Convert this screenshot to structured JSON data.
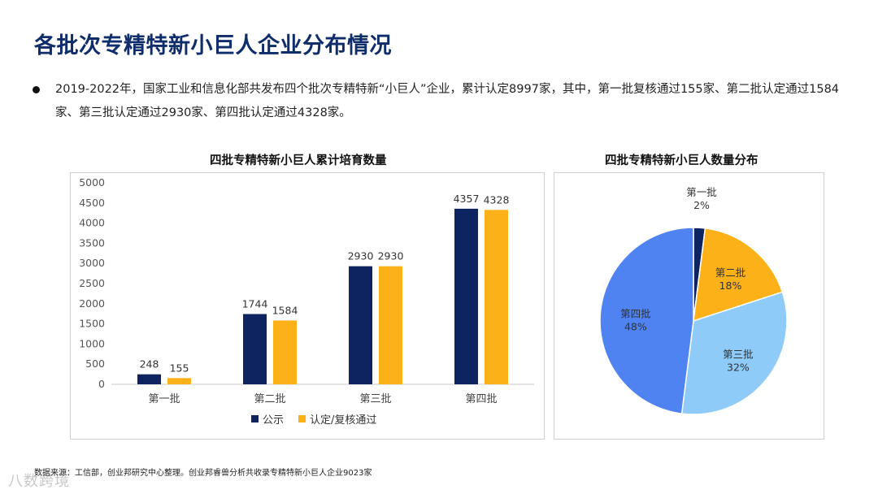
{
  "page": {
    "title": "各批次专精特新小巨人企业分布情况",
    "bullet": "2019-2022年，国家工业和信息化部共发布四个批次专精特新“小巨人”企业，累计认定8997家，其中，第一批复核通过155家、第二批认定通过1584家、第三批认定通过2930家、第四批认定通过4328家。",
    "footer": "数据来源：工信部，创业邦研究中心整理。创业邦睿兽分析共收录专精特新小巨人企业9023家",
    "watermark": "八数跨境"
  },
  "colors": {
    "navy": "#0d2461",
    "gold": "#fbb117",
    "lightblue": "#8ecbf9",
    "blue": "#4f83f1",
    "title": "#0f2d6b"
  },
  "chart_data": [
    {
      "type": "bar",
      "title": "四批专精特新小巨人累计培育数量",
      "categories": [
        "第一批",
        "第二批",
        "第三批",
        "第四批"
      ],
      "series": [
        {
          "name": "公示",
          "values": [
            248,
            1744,
            2930,
            4357
          ]
        },
        {
          "name": "认定/复核通过",
          "values": [
            155,
            1584,
            2930,
            4328
          ]
        }
      ],
      "yticks": [
        "0",
        "500",
        "1000",
        "1500",
        "2000",
        "2500",
        "3000",
        "3500",
        "4000",
        "4500",
        "5000"
      ],
      "ylim": [
        0,
        5000
      ],
      "xlabel": "",
      "ylabel": "",
      "legend": "bottom"
    },
    {
      "type": "pie",
      "title": "四批专精特新小巨人数量分布",
      "slices": [
        {
          "label": "第一批",
          "value": 2,
          "display": "2%"
        },
        {
          "label": "第二批",
          "value": 18,
          "display": "18%"
        },
        {
          "label": "第三批",
          "value": 32,
          "display": "32%"
        },
        {
          "label": "第四批",
          "value": 48,
          "display": "48%"
        }
      ]
    }
  ]
}
